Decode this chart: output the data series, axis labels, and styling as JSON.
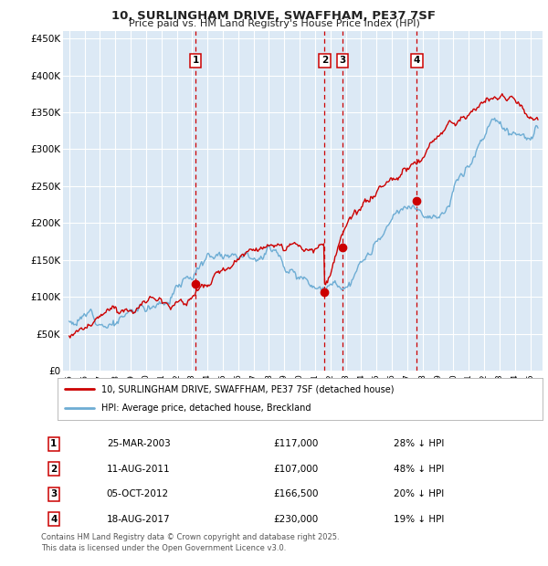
{
  "title": "10, SURLINGHAM DRIVE, SWAFFHAM, PE37 7SF",
  "subtitle": "Price paid vs. HM Land Registry's House Price Index (HPI)",
  "plot_bg_color": "#dce9f5",
  "ylim": [
    0,
    460000
  ],
  "yticks": [
    0,
    50000,
    100000,
    150000,
    200000,
    250000,
    300000,
    350000,
    400000,
    450000
  ],
  "ytick_labels": [
    "£0",
    "£50K",
    "£100K",
    "£150K",
    "£200K",
    "£250K",
    "£300K",
    "£350K",
    "£400K",
    "£450K"
  ],
  "legend1_label": "10, SURLINGHAM DRIVE, SWAFFHAM, PE37 7SF (detached house)",
  "legend2_label": "HPI: Average price, detached house, Breckland",
  "sales": [
    {
      "num": 1,
      "date": "25-MAR-2003",
      "price": 117000,
      "pct": "28% ↓ HPI",
      "x_year": 2003.23
    },
    {
      "num": 2,
      "date": "11-AUG-2011",
      "price": 107000,
      "pct": "48% ↓ HPI",
      "x_year": 2011.62
    },
    {
      "num": 3,
      "date": "05-OCT-2012",
      "price": 166500,
      "pct": "20% ↓ HPI",
      "x_year": 2012.77
    },
    {
      "num": 4,
      "date": "18-AUG-2017",
      "price": 230000,
      "pct": "19% ↓ HPI",
      "x_year": 2017.62
    }
  ],
  "footer": "Contains HM Land Registry data © Crown copyright and database right 2025.\nThis data is licensed under the Open Government Licence v3.0.",
  "hpi_color": "#6eadd4",
  "price_color": "#cc0000",
  "annotation_box_color": "#cc0000",
  "dashed_line_color": "#cc0000",
  "xlim_left": 1994.6,
  "xlim_right": 2025.8,
  "xstart": 1995,
  "xend": 2026
}
